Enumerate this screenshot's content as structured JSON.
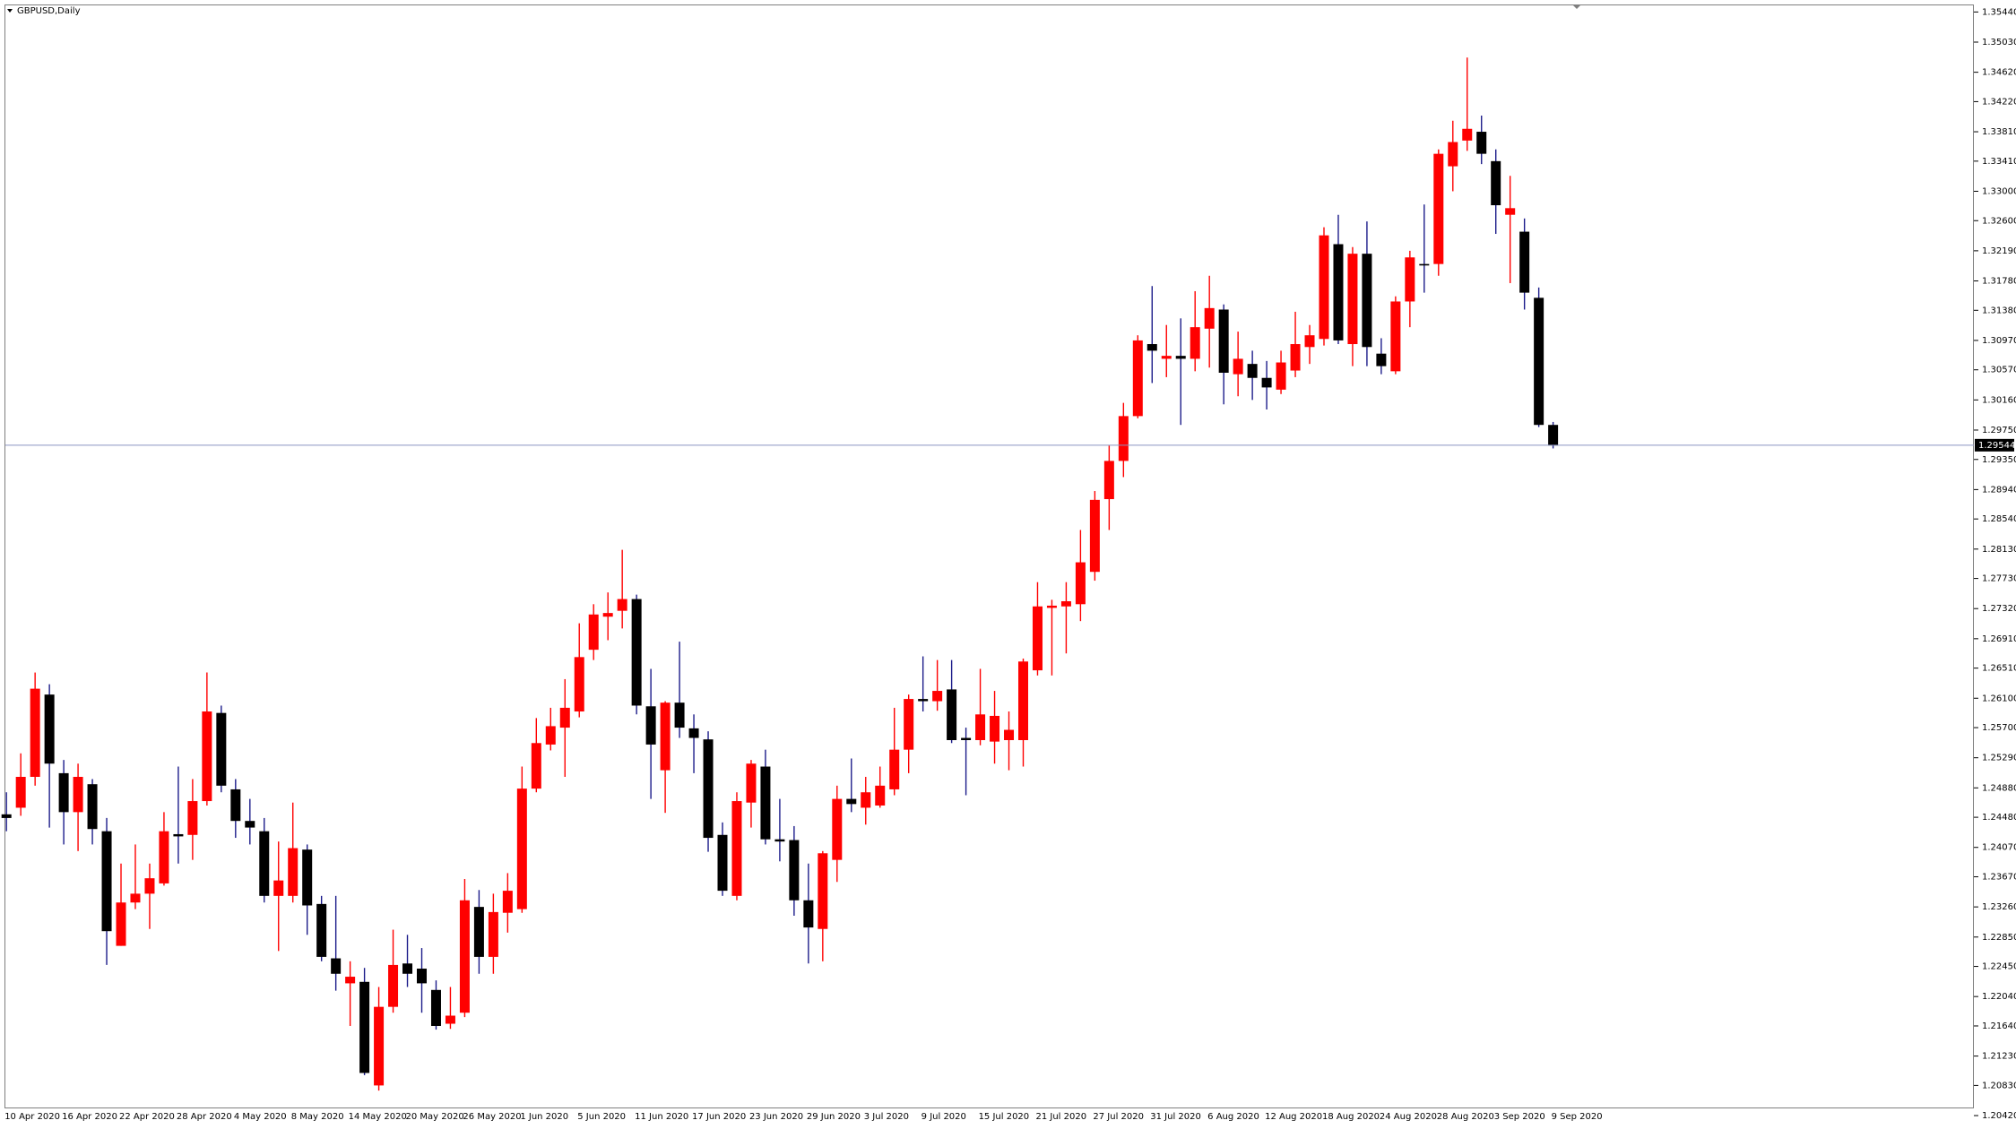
{
  "chart_data": {
    "type": "candlestick",
    "title": "GBPUSD,Daily",
    "categories": [
      "10 Apr 2020",
      null,
      null,
      null,
      "16 Apr 2020",
      null,
      null,
      null,
      "22 Apr 2020",
      null,
      null,
      null,
      "28 Apr 2020",
      null,
      null,
      null,
      "4 May 2020",
      null,
      null,
      null,
      "8 May 2020",
      null,
      null,
      null,
      "14 May 2020",
      null,
      null,
      null,
      "20 May 2020",
      null,
      null,
      null,
      "26 May 2020",
      null,
      null,
      null,
      "1 Jun 2020",
      null,
      null,
      null,
      "5 Jun 2020",
      null,
      null,
      null,
      "11 Jun 2020",
      null,
      null,
      null,
      "17 Jun 2020",
      null,
      null,
      null,
      "23 Jun 2020",
      null,
      null,
      null,
      "29 Jun 2020",
      null,
      null,
      null,
      "3 Jul 2020",
      null,
      null,
      null,
      "9 Jul 2020",
      null,
      null,
      null,
      "15 Jul 2020",
      null,
      null,
      null,
      "21 Jul 2020",
      null,
      null,
      null,
      "27 Jul 2020",
      null,
      null,
      null,
      "31 Jul 2020",
      null,
      null,
      null,
      "6 Aug 2020",
      null,
      null,
      null,
      "12 Aug 2020",
      null,
      null,
      null,
      "18 Aug 2020",
      null,
      null,
      null,
      "24 Aug 2020",
      null,
      null,
      null,
      "28 Aug 2020",
      null,
      null,
      null,
      "3 Sep 2020",
      null,
      null,
      null,
      "9 Sep 2020"
    ],
    "open": [
      1.2452,
      1.2461,
      1.2503,
      1.2615,
      1.2508,
      1.2455,
      1.2493,
      1.2429,
      1.2273,
      1.2332,
      1.2344,
      1.2358,
      1.2425,
      1.2424,
      1.247,
      1.259,
      1.2486,
      1.2443,
      1.2429,
      1.2341,
      1.2341,
      1.2404,
      1.233,
      1.2256,
      1.2222,
      1.2224,
      1.2083,
      1.219,
      1.2249,
      1.2242,
      1.2213,
      1.2167,
      1.2182,
      1.2326,
      1.2258,
      1.2318,
      1.2323,
      1.2487,
      1.2547,
      1.257,
      1.2592,
      1.2676,
      1.2721,
      1.2729,
      1.2745,
      1.2599,
      1.2512,
      1.2604,
      1.2569,
      1.2554,
      1.2424,
      1.2341,
      1.2468,
      1.2517,
      1.2418,
      1.2417,
      1.2335,
      1.2296,
      1.239,
      1.2473,
      1.2461,
      1.2464,
      1.2486,
      1.254,
      1.2609,
      1.2606,
      1.2622,
      1.2556,
      1.2553,
      1.2551,
      1.2553,
      1.2553,
      1.2648,
      1.2733,
      1.2735,
      1.2738,
      1.2782,
      1.2881,
      1.2933,
      1.2994,
      1.3092,
      1.3072,
      1.3076,
      1.3072,
      1.3113,
      1.3139,
      1.3051,
      1.3065,
      1.3046,
      1.303,
      1.3056,
      1.3088,
      1.3099,
      1.3228,
      1.3092,
      1.3215,
      1.3079,
      1.3055,
      1.315,
      1.3201,
      1.3201,
      1.3334,
      1.3369,
      1.3381,
      1.3341,
      1.3268,
      1.3245,
      1.3155,
      1.2982
    ],
    "high": [
      1.2482,
      1.2535,
      1.2645,
      1.2629,
      1.2526,
      1.2521,
      1.25,
      1.2447,
      1.2385,
      1.2411,
      1.2385,
      1.2455,
      1.2517,
      1.25,
      1.2645,
      1.26,
      1.25,
      1.2473,
      1.2447,
      1.2415,
      1.2468,
      1.2411,
      1.2341,
      1.2341,
      1.2252,
      1.2243,
      1.2217,
      1.2295,
      1.2288,
      1.227,
      1.2226,
      1.2217,
      1.2364,
      1.2349,
      1.2344,
      1.2372,
      1.2517,
      1.2583,
      1.2597,
      1.2636,
      1.2712,
      1.2738,
      1.2754,
      1.2812,
      1.2751,
      1.265,
      1.2606,
      1.2687,
      1.2588,
      1.2565,
      1.2441,
      1.2482,
      1.2526,
      1.254,
      1.2473,
      1.2436,
      1.2385,
      1.2402,
      1.2491,
      1.2528,
      1.2503,
      1.2517,
      1.2597,
      1.2615,
      1.2667,
      1.2662,
      1.2662,
      1.257,
      1.265,
      1.262,
      1.2592,
      1.2664,
      1.2768,
      1.2744,
      1.2768,
      1.2839,
      1.2892,
      1.2954,
      1.3012,
      1.3104,
      1.3171,
      1.3118,
      1.3127,
      1.3164,
      1.3185,
      1.3146,
      1.3109,
      1.3083,
      1.3069,
      1.3083,
      1.3136,
      1.3118,
      1.3251,
      1.3268,
      1.3224,
      1.3259,
      1.31,
      1.3157,
      1.3219,
      1.3282,
      1.3357,
      1.3396,
      1.3482,
      1.3403,
      1.3357,
      1.3321,
      1.3263,
      1.3169,
      1.2986
    ],
    "low": [
      1.2429,
      1.245,
      1.2491,
      1.2434,
      1.2411,
      1.2402,
      1.2411,
      1.2247,
      1.2273,
      1.2323,
      1.2296,
      1.2355,
      1.2385,
      1.239,
      1.2464,
      1.2482,
      1.242,
      1.2411,
      1.2332,
      1.2266,
      1.2332,
      1.2288,
      1.2252,
      1.2212,
      1.2164,
      1.2097,
      1.2076,
      1.2182,
      1.2217,
      1.2182,
      1.2159,
      1.216,
      1.2176,
      1.2235,
      1.2235,
      1.2291,
      1.2318,
      1.2482,
      1.2539,
      1.2503,
      1.2584,
      1.2662,
      1.2689,
      1.2705,
      1.2588,
      1.2473,
      1.2454,
      1.2556,
      1.2508,
      1.2401,
      1.2341,
      1.2335,
      1.2434,
      1.2411,
      1.2388,
      1.2314,
      1.2249,
      1.2252,
      1.236,
      1.2455,
      1.2438,
      1.2461,
      1.2478,
      1.2508,
      1.2592,
      1.2593,
      1.2549,
      1.2478,
      1.2546,
      1.2521,
      1.2512,
      1.2517,
      1.2641,
      1.2641,
      1.2671,
      1.2715,
      1.277,
      1.2839,
      1.2911,
      1.2991,
      1.3039,
      1.3047,
      1.2982,
      1.3055,
      1.306,
      1.301,
      1.3021,
      1.3016,
      1.3003,
      1.3024,
      1.3047,
      1.3065,
      1.309,
      1.3092,
      1.3062,
      1.3062,
      1.3051,
      1.3051,
      1.3115,
      1.3162,
      1.3185,
      1.33,
      1.3355,
      1.3337,
      1.3242,
      1.3175,
      1.3139,
      1.2979,
      1.295
    ],
    "close": [
      1.2447,
      1.2503,
      1.2623,
      1.2521,
      1.2455,
      1.2503,
      1.2432,
      1.2293,
      1.2332,
      1.2344,
      1.2365,
      1.2429,
      1.2422,
      1.247,
      1.2592,
      1.2491,
      1.2443,
      1.2434,
      1.2341,
      1.2362,
      1.2406,
      1.2328,
      1.2258,
      1.2235,
      1.2231,
      1.21,
      1.219,
      1.2247,
      1.2235,
      1.2222,
      1.2164,
      1.2178,
      1.2335,
      1.2258,
      1.2319,
      1.2348,
      1.2487,
      1.2549,
      1.2572,
      1.2597,
      1.2666,
      1.2724,
      1.2726,
      1.2745,
      1.26,
      1.2547,
      1.2604,
      1.257,
      1.2556,
      1.242,
      1.2348,
      1.247,
      1.2521,
      1.2418,
      1.2415,
      1.2335,
      1.2298,
      1.2399,
      1.2473,
      1.2466,
      1.2482,
      1.2491,
      1.254,
      1.2609,
      1.2606,
      1.262,
      1.2553,
      1.2553,
      1.2588,
      1.2586,
      1.2567,
      1.266,
      1.2735,
      1.2736,
      1.2742,
      1.2795,
      1.288,
      1.2933,
      1.2994,
      1.3097,
      1.3083,
      1.3076,
      1.3072,
      1.3115,
      1.3141,
      1.3053,
      1.3072,
      1.3046,
      1.3033,
      1.3067,
      1.3092,
      1.3104,
      1.324,
      1.3097,
      1.3215,
      1.3088,
      1.3062,
      1.315,
      1.321,
      1.3199,
      1.3351,
      1.3367,
      1.3385,
      1.3351,
      1.3281,
      1.3277,
      1.3162,
      1.2982,
      1.2954
    ],
    "up_color": "#ff0000",
    "down_color": "#000000",
    "down_wick_color": "#1c1c8a",
    "current_price": 1.29544,
    "current_price_color": "#8a94c0",
    "ylim": [
      1.2053,
      1.3553
    ],
    "yticks": [
      {
        "value": 1.3544,
        "label": "1.35440"
      },
      {
        "value": 1.3503,
        "label": "1.35030"
      },
      {
        "value": 1.3462,
        "label": "1.34620"
      },
      {
        "value": 1.3422,
        "label": "1.34220"
      },
      {
        "value": 1.3381,
        "label": "1.33810"
      },
      {
        "value": 1.3341,
        "label": "1.33410"
      },
      {
        "value": 1.33,
        "label": "1.33000"
      },
      {
        "value": 1.326,
        "label": "1.32600"
      },
      {
        "value": 1.3219,
        "label": "1.32190"
      },
      {
        "value": 1.3178,
        "label": "1.31780"
      },
      {
        "value": 1.3138,
        "label": "1.31380"
      },
      {
        "value": 1.3097,
        "label": "1.30970"
      },
      {
        "value": 1.3057,
        "label": "1.30570"
      },
      {
        "value": 1.3016,
        "label": "1.30160"
      },
      {
        "value": 1.2975,
        "label": "1.29750"
      },
      {
        "value": 1.2935,
        "label": "1.29350"
      },
      {
        "value": 1.2894,
        "label": "1.28940"
      },
      {
        "value": 1.2854,
        "label": "1.28540"
      },
      {
        "value": 1.2813,
        "label": "1.28130"
      },
      {
        "value": 1.2773,
        "label": "1.27730"
      },
      {
        "value": 1.2732,
        "label": "1.27320"
      },
      {
        "value": 1.2691,
        "label": "1.26910"
      },
      {
        "value": 1.2651,
        "label": "1.26510"
      },
      {
        "value": 1.261,
        "label": "1.26100"
      },
      {
        "value": 1.257,
        "label": "1.25700"
      },
      {
        "value": 1.2529,
        "label": "1.25290"
      },
      {
        "value": 1.2488,
        "label": "1.24880"
      },
      {
        "value": 1.2448,
        "label": "1.24480"
      },
      {
        "value": 1.2407,
        "label": "1.24070"
      },
      {
        "value": 1.2367,
        "label": "1.23670"
      },
      {
        "value": 1.2326,
        "label": "1.23260"
      },
      {
        "value": 1.2285,
        "label": "1.22850"
      },
      {
        "value": 1.2245,
        "label": "1.22450"
      },
      {
        "value": 1.2204,
        "label": "1.22040"
      },
      {
        "value": 1.2164,
        "label": "1.21640"
      },
      {
        "value": 1.2123,
        "label": "1.21230"
      },
      {
        "value": 1.2083,
        "label": "1.20830"
      },
      {
        "value": 1.2042,
        "label": "1.20420"
      }
    ],
    "grid": false
  }
}
